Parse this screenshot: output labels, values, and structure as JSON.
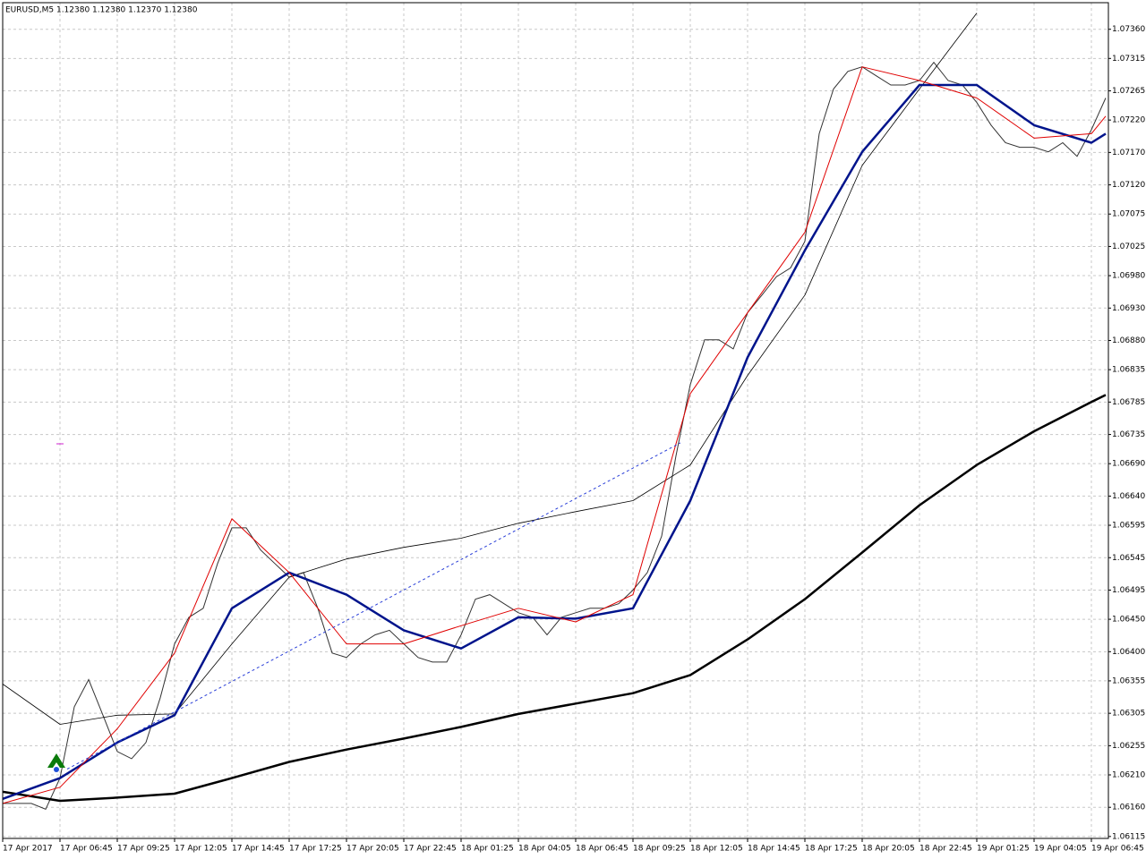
{
  "chart_data": {
    "type": "line",
    "title": "EURUSD,M5  1.12380 1.12380 1.12370 1.12380",
    "categories": [
      "17 Apr 2017",
      null,
      null,
      null,
      "17 Apr 06:45",
      null,
      null,
      null,
      "17 Apr 09:25",
      null,
      null,
      null,
      "17 Apr 12:05",
      null,
      null,
      null,
      "17 Apr 14:45",
      null,
      null,
      null,
      "17 Apr 17:25",
      null,
      null,
      null,
      "17 Apr 20:05",
      null,
      null,
      null,
      "17 Apr 22:45",
      null,
      null,
      null,
      "18 Apr 01:25",
      null,
      null,
      null,
      "18 Apr 04:05",
      null,
      null,
      null,
      "18 Apr 06:45",
      null,
      null,
      null,
      "18 Apr 09:25",
      null,
      null,
      null,
      "18 Apr 12:05",
      null,
      null,
      null,
      "18 Apr 14:45",
      null,
      null,
      null,
      "18 Apr 17:25",
      null,
      null,
      null,
      "18 Apr 20:05",
      null,
      null,
      null,
      "18 Apr 22:45",
      null,
      null,
      null,
      "19 Apr 01:25",
      null,
      null,
      null,
      "19 Apr 04:05",
      null,
      null,
      null,
      "19 Apr 06:45",
      null
    ],
    "values": [
      1.06166,
      1.06166,
      1.06166,
      1.06157,
      1.06205,
      1.06315,
      1.06357,
      1.06302,
      1.06246,
      1.06235,
      1.0626,
      1.06329,
      1.06412,
      1.06453,
      1.06467,
      1.06536,
      1.06591,
      1.06591,
      1.06557,
      1.06536,
      1.06515,
      1.06522,
      1.06467,
      1.06398,
      1.06391,
      1.06412,
      1.06426,
      1.06433,
      1.06412,
      1.06391,
      1.06384,
      1.06384,
      1.06426,
      1.06481,
      1.06488,
      1.06474,
      1.0646,
      1.06453,
      1.06426,
      1.06453,
      1.0646,
      1.06467,
      1.06467,
      1.06474,
      1.06495,
      1.06522,
      1.06578,
      1.06702,
      1.06812,
      1.06881,
      1.06881,
      1.06867,
      1.06923,
      1.0695,
      1.06978,
      1.06992,
      1.07033,
      1.07199,
      1.07268,
      1.07295,
      1.07302,
      1.07288,
      1.07274,
      1.07274,
      1.07281,
      1.07309,
      1.07281,
      1.07274,
      1.07247,
      1.07212,
      1.07185,
      1.07178,
      1.07178,
      1.07171,
      1.07185,
      1.07164,
      1.07205,
      1.07254
    ],
    "color": "#333333",
    "series": [
      {
        "color": "#000000",
        "width": 2.5,
        "x": [
          0,
          4,
          8,
          12,
          16,
          20,
          24,
          28,
          32,
          36,
          40,
          44,
          48,
          52,
          56,
          60,
          64,
          68,
          72,
          76,
          77
        ],
        "values": [
          1.06184,
          1.0617,
          1.06175,
          1.06181,
          1.06205,
          1.0623,
          1.06249,
          1.06266,
          1.06284,
          1.06304,
          1.0632,
          1.06336,
          1.06364,
          1.06419,
          1.06481,
          1.06553,
          1.06626,
          1.06688,
          1.0674,
          1.06785,
          1.06796
        ]
      },
      {
        "color": "#000000",
        "width": 0.8,
        "x": [
          0,
          4,
          8,
          12,
          16,
          20,
          24,
          28,
          32,
          36,
          40,
          44,
          48,
          52,
          56,
          60,
          64,
          68,
          72,
          76,
          77
        ],
        "values": [
          1.0635,
          1.06288,
          1.06302,
          1.06304,
          1.06412,
          1.06515,
          1.06543,
          1.06561,
          1.06575,
          1.06598,
          1.06616,
          1.06633,
          1.06688,
          1.06826,
          1.0695,
          1.0715,
          1.07268,
          1.07385,
          null,
          null,
          null
        ]
      },
      {
        "color": "#00148c",
        "width": 2.5,
        "x": [
          0,
          4,
          8,
          12,
          16,
          20,
          24,
          28,
          32,
          36,
          40,
          44,
          48,
          52,
          56,
          60,
          64,
          68,
          72,
          76,
          77
        ],
        "values": [
          1.06173,
          1.06205,
          1.0626,
          1.06302,
          1.06467,
          1.06522,
          1.06488,
          1.06433,
          1.06405,
          1.06453,
          1.06451,
          1.06467,
          1.06633,
          1.06854,
          1.07019,
          1.07171,
          1.07274,
          1.07274,
          1.07212,
          1.07185,
          1.07199
        ]
      },
      {
        "color": "#e00000",
        "width": 1,
        "x": [
          0,
          4,
          8,
          12,
          16,
          20,
          24,
          28,
          32,
          36,
          40,
          44,
          48,
          52,
          56,
          60,
          64,
          68,
          72,
          76,
          77
        ],
        "values": [
          1.06166,
          1.06191,
          1.06281,
          1.06398,
          1.06605,
          1.06522,
          1.06412,
          1.06412,
          1.0644,
          1.06467,
          1.06446,
          1.06488,
          1.06798,
          1.06923,
          1.07047,
          1.07302,
          1.07281,
          1.07254,
          1.07192,
          1.07199,
          1.07226
        ]
      },
      {
        "color": "#2a3fd8",
        "width": 1,
        "dash": true,
        "x": [
          4.5,
          47.3
        ],
        "values": [
          1.06219,
          1.06722
        ]
      }
    ],
    "ylim": [
      1.06112,
      1.07401
    ],
    "yticks": [
      {
        "value": 1.0736,
        "label": "1.07360"
      },
      {
        "value": 1.07315,
        "label": "1.07315"
      },
      {
        "value": 1.07265,
        "label": "1.07265"
      },
      {
        "value": 1.0722,
        "label": "1.07220"
      },
      {
        "value": 1.0717,
        "label": "1.07170"
      },
      {
        "value": 1.0712,
        "label": "1.07120"
      },
      {
        "value": 1.07075,
        "label": "1.07075"
      },
      {
        "value": 1.07025,
        "label": "1.07025"
      },
      {
        "value": 1.0698,
        "label": "1.06980"
      },
      {
        "value": 1.0693,
        "label": "1.06930"
      },
      {
        "value": 1.0688,
        "label": "1.06880"
      },
      {
        "value": 1.06835,
        "label": "1.06835"
      },
      {
        "value": 1.06785,
        "label": "1.06785"
      },
      {
        "value": 1.06735,
        "label": "1.06735"
      },
      {
        "value": 1.0669,
        "label": "1.06690"
      },
      {
        "value": 1.0664,
        "label": "1.06640"
      },
      {
        "value": 1.06595,
        "label": "1.06595"
      },
      {
        "value": 1.06545,
        "label": "1.06545"
      },
      {
        "value": 1.06495,
        "label": "1.06495"
      },
      {
        "value": 1.0645,
        "label": "1.06450"
      },
      {
        "value": 1.064,
        "label": "1.06400"
      },
      {
        "value": 1.06355,
        "label": "1.06355"
      },
      {
        "value": 1.06305,
        "label": "1.06305"
      },
      {
        "value": 1.06255,
        "label": "1.06255"
      },
      {
        "value": 1.0621,
        "label": "1.06210"
      },
      {
        "value": 1.0616,
        "label": "1.06160"
      },
      {
        "value": 1.06115,
        "label": "1.06115"
      }
    ],
    "grid": true
  }
}
